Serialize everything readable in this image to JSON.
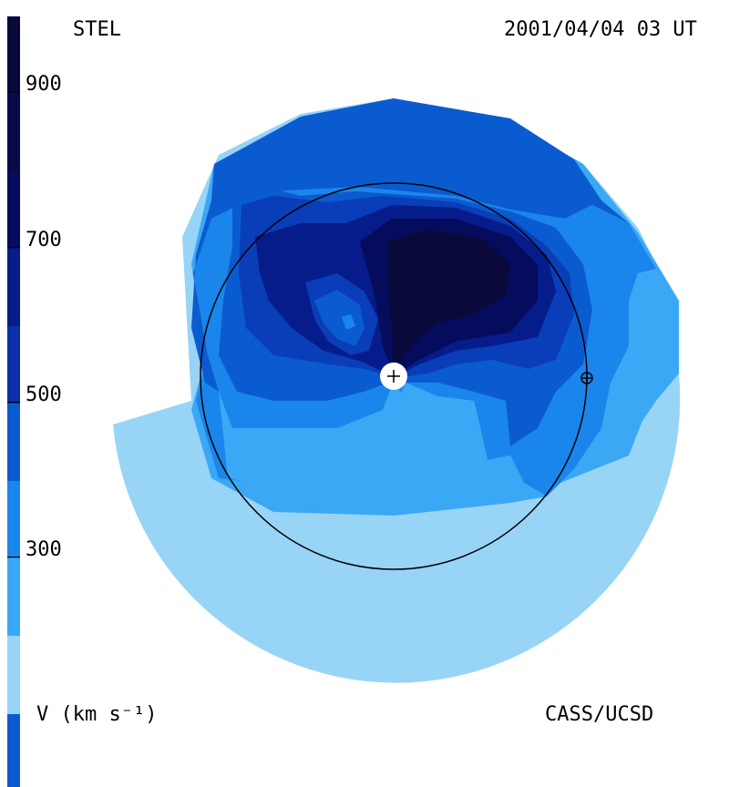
{
  "header": {
    "observatory": "STEL",
    "timestamp": "2001/04/04 03 UT"
  },
  "footer": {
    "units": "V (km s⁻¹)",
    "credit": "CASS/UCSD"
  },
  "colorbar": {
    "ticks": [
      "900",
      "700",
      "500",
      "300"
    ],
    "colors": [
      "#0a0a3a",
      "#050c5e",
      "#061c8a",
      "#0a3db8",
      "#0b5bd0",
      "#1a86ec",
      "#3aa8f4",
      "#98d4f6"
    ]
  },
  "map": {
    "sun_marker": "plus-icon",
    "earth_marker": "earth-icon",
    "orbit": "circle"
  }
}
